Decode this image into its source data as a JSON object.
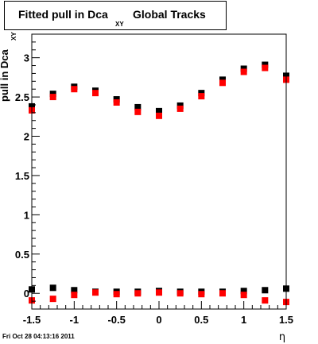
{
  "chart_data": {
    "type": "scatter",
    "title": {
      "main": "Fitted pull in Dca",
      "subscript": "XY",
      "suffix": "Global Tracks"
    },
    "xlabel": "η",
    "ylabel": {
      "main": "pull in Dca",
      "subscript": "XY"
    },
    "xlim": [
      -1.5,
      1.5
    ],
    "ylim": [
      -0.2,
      3.3
    ],
    "x_ticks": [
      "-1.5",
      "-1",
      "-0.5",
      "0",
      "0.5",
      "1",
      "1.5"
    ],
    "y_ticks": [
      "0",
      "0.5",
      "1",
      "1.5",
      "2",
      "2.5",
      "3"
    ],
    "grid": false,
    "series": [
      {
        "color": "#000000",
        "x": [
          -1.5,
          -1.25,
          -1.0,
          -0.75,
          -0.5,
          -0.25,
          0.0,
          0.25,
          0.5,
          0.75,
          1.0,
          1.25,
          1.5
        ],
        "y": [
          2.38,
          2.54,
          2.63,
          2.58,
          2.47,
          2.37,
          2.32,
          2.39,
          2.55,
          2.72,
          2.86,
          2.91,
          2.77
        ]
      },
      {
        "color": "#ff0000",
        "x": [
          -1.5,
          -1.25,
          -1.0,
          -0.75,
          -0.5,
          -0.25,
          0.0,
          0.25,
          0.5,
          0.75,
          1.0,
          1.25,
          1.5
        ],
        "y": [
          2.33,
          2.5,
          2.6,
          2.55,
          2.43,
          2.31,
          2.26,
          2.35,
          2.51,
          2.68,
          2.82,
          2.87,
          2.72
        ]
      },
      {
        "color": "#000000",
        "x": [
          -1.5,
          -1.25,
          -1.0,
          -0.75,
          -0.5,
          -0.25,
          0.0,
          0.25,
          0.5,
          0.75,
          1.0,
          1.25,
          1.5
        ],
        "y": [
          0.05,
          0.07,
          0.04,
          0.02,
          0.02,
          0.02,
          0.03,
          0.02,
          0.02,
          0.02,
          0.03,
          0.04,
          0.06
        ]
      },
      {
        "color": "#ff0000",
        "x": [
          -1.5,
          -1.25,
          -1.0,
          -0.75,
          -0.5,
          -0.25,
          0.0,
          0.25,
          0.5,
          0.75,
          1.0,
          1.25,
          1.5
        ],
        "y": [
          -0.09,
          -0.07,
          -0.02,
          0.01,
          -0.01,
          0.0,
          0.01,
          0.0,
          -0.01,
          0.0,
          -0.02,
          -0.09,
          -0.11
        ]
      }
    ]
  },
  "footer_timestamp": "Fri Oct 28 04:13:16 2011"
}
